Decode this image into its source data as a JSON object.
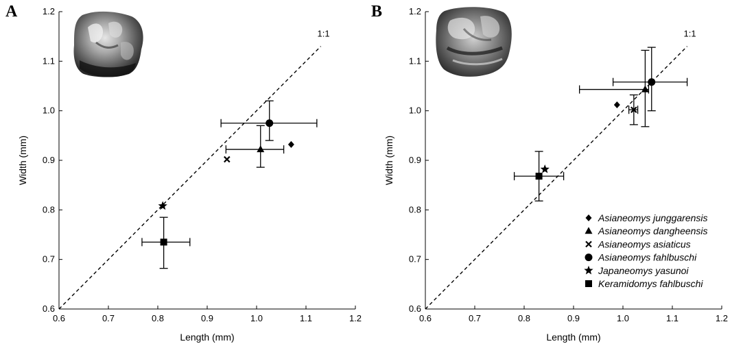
{
  "figure": {
    "panels": [
      "A",
      "B"
    ]
  },
  "chart_data": [
    {
      "panel": "A",
      "type": "scatter",
      "xlabel": "Length (mm)",
      "ylabel": "Width (mm)",
      "xlim": [
        0.6,
        1.2
      ],
      "ylim": [
        0.6,
        1.2
      ],
      "x_ticks": [
        "0.6",
        "0.7",
        "0.8",
        "0.9",
        "1.0",
        "1.1",
        "1.2"
      ],
      "y_ticks": [
        "0.6",
        "0.7",
        "0.8",
        "0.9",
        "1.0",
        "1.1",
        "1.2"
      ],
      "reference_line": {
        "label": "1:1",
        "slope": 1,
        "style": "dashed"
      },
      "has_tooth_photo": true,
      "series": [
        {
          "name": "Asianeomys junggarensis",
          "marker": "diamond",
          "x": 1.07,
          "y": 0.932
        },
        {
          "name": "Asianeomys dangheensis",
          "marker": "triangle",
          "x": 1.008,
          "y": 0.922,
          "x_err": [
            0.938,
            1.055
          ],
          "y_err": [
            0.886,
            0.97
          ]
        },
        {
          "name": "Asianeomys asiaticus",
          "marker": "cross",
          "x": 0.94,
          "y": 0.902
        },
        {
          "name": "Asianeomys fahlbuschi",
          "marker": "circle",
          "x": 1.026,
          "y": 0.975,
          "x_err": [
            0.928,
            1.122
          ],
          "y_err": [
            0.94,
            1.02
          ]
        },
        {
          "name": "Japaneomys yasunoi",
          "marker": "star",
          "x": 0.81,
          "y": 0.808
        },
        {
          "name": "Keramidomys fahlbuschi",
          "marker": "square",
          "x": 0.812,
          "y": 0.735,
          "x_err": [
            0.768,
            0.865
          ],
          "y_err": [
            0.682,
            0.785
          ]
        }
      ]
    },
    {
      "panel": "B",
      "type": "scatter",
      "xlabel": "Length (mm)",
      "ylabel": "Width (mm)",
      "xlim": [
        0.6,
        1.2
      ],
      "ylim": [
        0.6,
        1.2
      ],
      "x_ticks": [
        "0.6",
        "0.7",
        "0.8",
        "0.9",
        "1.0",
        "1.1",
        "1.2"
      ],
      "y_ticks": [
        "0.6",
        "0.7",
        "0.8",
        "0.9",
        "1.0",
        "1.1",
        "1.2"
      ],
      "reference_line": {
        "label": "1:1",
        "slope": 1,
        "style": "dashed"
      },
      "has_tooth_photo": true,
      "legend_position": "bottom-right",
      "series": [
        {
          "name": "Asianeomys junggarensis",
          "marker": "diamond",
          "x": 0.988,
          "y": 1.012
        },
        {
          "name": "Asianeomys dangheensis",
          "marker": "triangle",
          "x": 1.045,
          "y": 1.043,
          "x_err": [
            0.912,
            1.052
          ],
          "y_err": [
            0.968,
            1.122
          ]
        },
        {
          "name": "Asianeomys asiaticus",
          "marker": "cross",
          "x": 1.022,
          "y": 1.002,
          "x_err": [
            1.012,
            1.03
          ],
          "y_err": [
            0.972,
            1.032
          ]
        },
        {
          "name": "Asianeomys fahlbuschi",
          "marker": "circle",
          "x": 1.058,
          "y": 1.058,
          "x_err": [
            0.98,
            1.13
          ],
          "y_err": [
            1.0,
            1.128
          ]
        },
        {
          "name": "Japaneomys yasunoi",
          "marker": "star",
          "x": 0.842,
          "y": 0.882
        },
        {
          "name": "Keramidomys fahlbuschi",
          "marker": "square",
          "x": 0.83,
          "y": 0.868,
          "x_err": [
            0.78,
            0.88
          ],
          "y_err": [
            0.818,
            0.918
          ]
        }
      ]
    }
  ],
  "legend": {
    "items": [
      {
        "marker": "diamond",
        "label": "Asianeomys junggarensis"
      },
      {
        "marker": "triangle",
        "label": "Asianeomys dangheensis"
      },
      {
        "marker": "cross",
        "label": "Asianeomys asiaticus"
      },
      {
        "marker": "circle",
        "label": "Asianeomys fahlbuschi"
      },
      {
        "marker": "star",
        "label": "Japaneomys yasunoi"
      },
      {
        "marker": "square",
        "label": "Keramidomys fahlbuschi"
      }
    ]
  }
}
